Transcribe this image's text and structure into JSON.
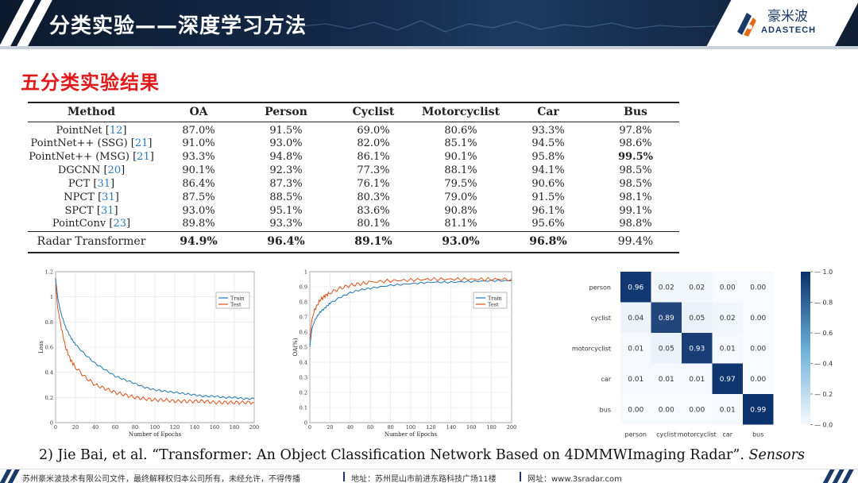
{
  "header": {
    "title": "分类实验——深度学习方法",
    "logo_cn": "豪米波",
    "logo_en": "ADASTECH"
  },
  "section_title": "五分类实验结果",
  "table": {
    "headers": [
      "Method",
      "OA",
      "Person",
      "Cyclist",
      "Motorcyclist",
      "Car",
      "Bus"
    ],
    "rows": [
      {
        "method": "PointNet",
        "ref": "12",
        "values": [
          "87.0%",
          "91.5%",
          "69.0%",
          "80.6%",
          "93.3%",
          "97.8%"
        ]
      },
      {
        "method": "PointNet++ (SSG)",
        "ref": "21",
        "values": [
          "91.0%",
          "93.0%",
          "82.0%",
          "85.1%",
          "94.5%",
          "98.6%"
        ]
      },
      {
        "method": "PointNet++ (MSG)",
        "ref": "21",
        "values": [
          "93.3%",
          "94.8%",
          "86.1%",
          "90.1%",
          "95.8%",
          "99.5%"
        ]
      },
      {
        "method": "DGCNN",
        "ref": "20",
        "values": [
          "90.1%",
          "92.3%",
          "77.3%",
          "88.1%",
          "94.1%",
          "98.5%"
        ]
      },
      {
        "method": "PCT",
        "ref": "31",
        "values": [
          "86.4%",
          "87.3%",
          "76.1%",
          "79.5%",
          "90.6%",
          "98.5%"
        ]
      },
      {
        "method": "NPCT",
        "ref": "31",
        "values": [
          "87.5%",
          "88.5%",
          "80.3%",
          "79.0%",
          "91.5%",
          "98.1%"
        ]
      },
      {
        "method": "SPCT",
        "ref": "31",
        "values": [
          "93.0%",
          "95.1%",
          "83.6%",
          "90.8%",
          "96.1%",
          "99.1%"
        ]
      },
      {
        "method": "PointConv",
        "ref": "23",
        "values": [
          "89.8%",
          "93.3%",
          "80.1%",
          "81.1%",
          "95.6%",
          "98.8%"
        ]
      }
    ],
    "final_row": {
      "method": "Radar Transformer",
      "values": [
        "94.9%",
        "96.4%",
        "89.1%",
        "93.0%",
        "96.8%",
        "99.4%"
      ]
    }
  },
  "chart_data": [
    {
      "type": "line",
      "xlabel": "Number of Epochs",
      "ylabel": "Loss",
      "xlim": [
        0,
        200
      ],
      "ylim": [
        0,
        1.2
      ],
      "xticks": [
        0,
        20,
        40,
        60,
        80,
        100,
        120,
        140,
        160,
        180,
        200
      ],
      "yticks": [
        0,
        0.2,
        0.4,
        0.6,
        0.8,
        1,
        1.2
      ],
      "legend": "top-right",
      "series": [
        {
          "name": "Train",
          "color": "#1f77b4",
          "x": [
            0,
            2,
            5,
            10,
            15,
            20,
            30,
            40,
            50,
            60,
            70,
            80,
            90,
            100,
            110,
            120,
            130,
            140,
            150,
            160,
            170,
            180,
            190,
            200
          ],
          "y": [
            1.15,
            1.0,
            0.88,
            0.76,
            0.68,
            0.62,
            0.54,
            0.47,
            0.42,
            0.37,
            0.34,
            0.31,
            0.28,
            0.26,
            0.25,
            0.24,
            0.23,
            0.22,
            0.21,
            0.21,
            0.2,
            0.2,
            0.19,
            0.19
          ]
        },
        {
          "name": "Test",
          "color": "#d95319",
          "x": [
            0,
            2,
            5,
            10,
            15,
            20,
            30,
            40,
            50,
            60,
            70,
            80,
            90,
            100,
            110,
            120,
            130,
            140,
            150,
            160,
            170,
            180,
            190,
            200
          ],
          "y": [
            1.1,
            0.92,
            0.78,
            0.6,
            0.5,
            0.44,
            0.36,
            0.3,
            0.27,
            0.24,
            0.22,
            0.2,
            0.19,
            0.18,
            0.18,
            0.17,
            0.17,
            0.17,
            0.17,
            0.16,
            0.16,
            0.16,
            0.16,
            0.16
          ]
        }
      ]
    },
    {
      "type": "line",
      "xlabel": "Number of Epochs",
      "ylabel": "OA(%)",
      "xlim": [
        0,
        200
      ],
      "ylim": [
        0,
        1
      ],
      "xticks": [
        0,
        20,
        40,
        60,
        80,
        100,
        120,
        140,
        160,
        180,
        200
      ],
      "yticks": [
        0,
        0.1,
        0.2,
        0.3,
        0.4,
        0.5,
        0.6,
        0.7,
        0.8,
        0.9,
        1
      ],
      "legend": "top-right",
      "series": [
        {
          "name": "Train",
          "color": "#1f77b4",
          "x": [
            0,
            2,
            5,
            10,
            15,
            20,
            30,
            40,
            50,
            60,
            80,
            100,
            120,
            140,
            160,
            180,
            200
          ],
          "y": [
            0.5,
            0.62,
            0.68,
            0.73,
            0.76,
            0.79,
            0.83,
            0.86,
            0.88,
            0.89,
            0.91,
            0.92,
            0.93,
            0.93,
            0.935,
            0.94,
            0.94
          ]
        },
        {
          "name": "Test",
          "color": "#d95319",
          "x": [
            0,
            2,
            5,
            10,
            15,
            20,
            30,
            40,
            50,
            60,
            80,
            100,
            120,
            140,
            160,
            180,
            200
          ],
          "y": [
            0.55,
            0.68,
            0.75,
            0.81,
            0.84,
            0.86,
            0.89,
            0.91,
            0.92,
            0.93,
            0.94,
            0.945,
            0.95,
            0.95,
            0.95,
            0.95,
            0.95
          ]
        }
      ]
    },
    {
      "type": "heatmap",
      "row_labels": [
        "person",
        "cyclist",
        "motorcyclist",
        "car",
        "bus"
      ],
      "col_labels": [
        "person",
        "cyclist",
        "motorcyclist",
        "car",
        "bus"
      ],
      "values": [
        [
          0.96,
          0.02,
          0.02,
          0.0,
          0.0
        ],
        [
          0.04,
          0.89,
          0.05,
          0.02,
          0.0
        ],
        [
          0.01,
          0.05,
          0.93,
          0.01,
          0.0
        ],
        [
          0.01,
          0.01,
          0.01,
          0.97,
          0.0
        ],
        [
          0.0,
          0.0,
          0.0,
          0.01,
          0.99
        ]
      ],
      "colorbar_ticks": [
        "0.0",
        "0.2",
        "0.4",
        "0.6",
        "0.8",
        "1.0"
      ],
      "colormap": {
        "low": "#f7fbff",
        "high": "#08306b"
      }
    }
  ],
  "citation": {
    "text": "2) Jie Bai, et al. “Transformer: An Object Classification Network Based on 4DMMWImaging Radar”. ",
    "journal": "Sensors"
  },
  "footer": {
    "company": "苏州豪米波技术有限公司文件，最终解释权归本公司所有，未经允许，不得传播",
    "address": "地址：苏州昆山市前进东路科技广场11楼",
    "website": "网址：www.3sradar.com"
  }
}
